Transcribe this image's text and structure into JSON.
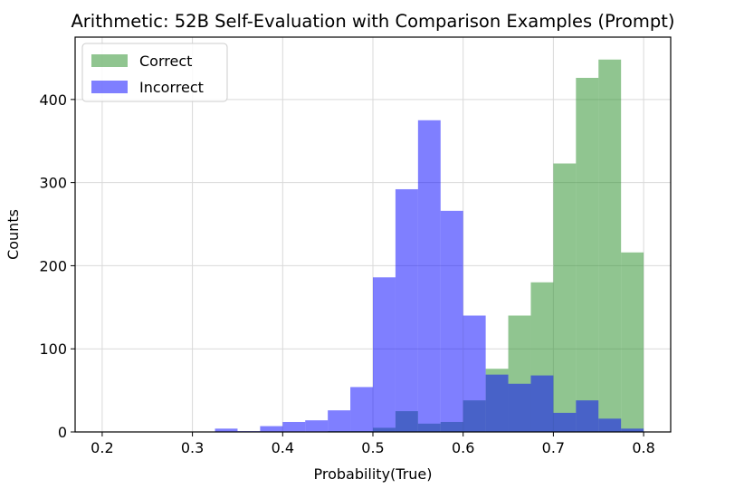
{
  "chart_data": {
    "type": "bar",
    "title": "Arithmetic: 52B Self-Evaluation with Comparison Examples (Prompt)",
    "xlabel": "Probability(True)",
    "ylabel": "Counts",
    "xlim": [
      0.17,
      0.83
    ],
    "ylim": [
      0,
      475
    ],
    "xticks": [
      {
        "value": 0.2,
        "label": "0.2"
      },
      {
        "value": 0.3,
        "label": "0.3"
      },
      {
        "value": 0.4,
        "label": "0.4"
      },
      {
        "value": 0.5,
        "label": "0.5"
      },
      {
        "value": 0.6,
        "label": "0.6"
      },
      {
        "value": 0.7,
        "label": "0.7"
      },
      {
        "value": 0.8,
        "label": "0.8"
      }
    ],
    "yticks": [
      {
        "value": 0,
        "label": "0"
      },
      {
        "value": 100,
        "label": "100"
      },
      {
        "value": 200,
        "label": "200"
      },
      {
        "value": 300,
        "label": "300"
      },
      {
        "value": 400,
        "label": "400"
      }
    ],
    "grid": true,
    "legend_position": "top-left",
    "bin_edges": [
      0.2,
      0.225,
      0.25,
      0.275,
      0.3,
      0.325,
      0.35,
      0.375,
      0.4,
      0.425,
      0.45,
      0.475,
      0.5,
      0.525,
      0.55,
      0.575,
      0.6,
      0.625,
      0.65,
      0.675,
      0.7,
      0.725,
      0.75,
      0.775,
      0.8
    ],
    "series": [
      {
        "name": "Correct",
        "color": "#228b22",
        "opacity": 0.5,
        "values": [
          0,
          0,
          0,
          0,
          0,
          0,
          0,
          0,
          0,
          0,
          1,
          1,
          5,
          25,
          10,
          12,
          38,
          76,
          140,
          180,
          323,
          426,
          448,
          216
        ]
      },
      {
        "name": "Incorrect",
        "color": "#0000ff",
        "opacity": 0.5,
        "values": [
          0,
          0,
          0,
          0,
          0,
          4,
          1,
          7,
          12,
          14,
          26,
          54,
          186,
          292,
          375,
          266,
          140,
          69,
          58,
          68,
          23,
          38,
          16,
          4
        ]
      }
    ]
  }
}
